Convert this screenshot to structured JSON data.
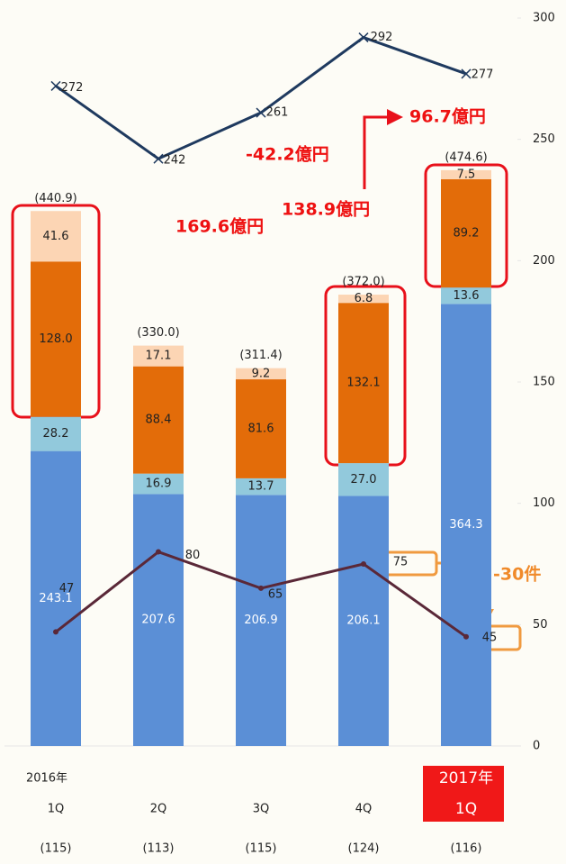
{
  "chart_data": {
    "type": "bar",
    "stacked": true,
    "categories": [
      "1Q",
      "2Q",
      "3Q",
      "4Q",
      "1Q"
    ],
    "years": [
      "2016年",
      null,
      null,
      null,
      "2017年"
    ],
    "counts": [
      "(115)",
      "(113)",
      "(115)",
      "(124)",
      "(116)"
    ],
    "ylim": [
      0,
      300
    ],
    "yticks": [
      0,
      50,
      100,
      150,
      200,
      250,
      300
    ],
    "y2lim": [
      0,
      600
    ],
    "series": [
      {
        "color": "#5b8fd6",
        "axis": "y2",
        "values": [
          243.1,
          207.6,
          206.9,
          206.1,
          364.3
        ],
        "value_labels": [
          "243.1",
          "207.6",
          "206.9",
          "206.1",
          "364.3"
        ],
        "label_color": "#ffffff"
      },
      {
        "color": "#92c9dc",
        "axis": "y2",
        "values": [
          28.2,
          16.9,
          13.7,
          27.0,
          13.6
        ],
        "value_labels": [
          "28.2",
          "16.9",
          "13.7",
          "27.0",
          "13.6"
        ],
        "label_color": "#222222"
      },
      {
        "color": "#e36c09",
        "axis": "y2",
        "values": [
          128.0,
          88.4,
          81.6,
          132.1,
          89.2
        ],
        "value_labels": [
          "128.0",
          "88.4",
          "81.6",
          "132.1",
          "89.2"
        ],
        "label_color": "#222222"
      },
      {
        "color": "#fcd5b4",
        "axis": "y2",
        "values": [
          41.6,
          17.1,
          9.2,
          6.8,
          7.5
        ],
        "value_labels": [
          "41.6",
          "17.1",
          "9.2",
          "6.8",
          "7.5"
        ],
        "label_color": "#222222"
      }
    ],
    "totals": {
      "values": [
        440.9,
        330.0,
        311.4,
        372.0,
        474.6
      ],
      "value_labels": [
        "(440.9)",
        "(330.0)",
        "(311.4)",
        "(372.0)",
        "(474.6)"
      ]
    },
    "lines": [
      {
        "type": "line",
        "color": "#1f3a5f",
        "values": [
          272,
          242,
          261,
          292,
          277
        ],
        "marker": "x"
      },
      {
        "type": "line",
        "color": "#5a2838",
        "values": [
          47,
          80,
          65,
          75,
          45
        ]
      }
    ],
    "annotations": [
      "169.6億円",
      "-42.2億円",
      "138.9億円",
      "96.7億円",
      "-30件"
    ]
  }
}
